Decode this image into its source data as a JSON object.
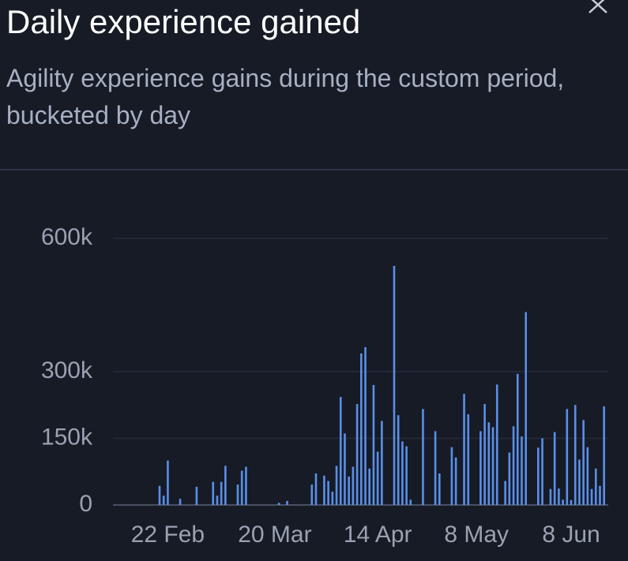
{
  "header": {
    "title": "Daily experience gained",
    "subtitle": "Agility experience gains during the custom period, bucketed by day"
  },
  "chart_data": {
    "type": "bar",
    "color": "#5b8fe8",
    "grid": true,
    "ylim": [
      0,
      600000
    ],
    "yticks": [
      0,
      {
        "value": 150000,
        "label": "150k"
      },
      {
        "value": 300000,
        "label": "300k"
      },
      {
        "value": 600000,
        "label": "600k"
      }
    ],
    "categories": [
      null,
      null,
      null,
      null,
      null,
      null,
      null,
      null,
      null,
      null,
      null,
      null,
      null,
      "22 Feb",
      null,
      null,
      null,
      null,
      null,
      null,
      null,
      null,
      null,
      null,
      null,
      null,
      null,
      null,
      null,
      null,
      null,
      null,
      null,
      null,
      null,
      null,
      null,
      null,
      null,
      "20 Mar",
      null,
      null,
      null,
      null,
      null,
      null,
      null,
      null,
      null,
      null,
      null,
      null,
      null,
      null,
      null,
      null,
      null,
      null,
      null,
      null,
      null,
      null,
      null,
      null,
      "14 Apr",
      null,
      null,
      null,
      null,
      null,
      null,
      null,
      null,
      null,
      null,
      null,
      null,
      null,
      null,
      null,
      null,
      null,
      null,
      null,
      null,
      null,
      null,
      null,
      "8 May",
      null,
      null,
      null,
      null,
      null,
      null,
      null,
      null,
      null,
      null,
      null,
      null,
      null,
      null,
      null,
      null,
      null,
      null,
      null,
      null,
      null,
      null,
      "8 Jun",
      null,
      null,
      null,
      null,
      null,
      null,
      null,
      null
    ],
    "values": [
      0,
      0,
      0,
      0,
      0,
      0,
      0,
      0,
      0,
      0,
      0,
      43000,
      21000,
      100000,
      0,
      0,
      14000,
      0,
      0,
      0,
      41000,
      0,
      0,
      0,
      52000,
      21000,
      52000,
      88000,
      0,
      0,
      46000,
      77000,
      86000,
      0,
      0,
      0,
      0,
      0,
      0,
      0,
      5000,
      0,
      9000,
      0,
      0,
      0,
      0,
      0,
      46000,
      71000,
      0,
      66000,
      54000,
      30000,
      88000,
      243000,
      161000,
      64000,
      86000,
      227000,
      341000,
      355000,
      82000,
      270000,
      120000,
      189000,
      0,
      0,
      538000,
      202000,
      143000,
      132000,
      12000,
      0,
      0,
      216000,
      0,
      0,
      166000,
      71000,
      0,
      0,
      130000,
      107000,
      0,
      250000,
      204000,
      0,
      0,
      166000,
      227000,
      186000,
      175000,
      271000,
      0,
      54000,
      118000,
      177000,
      295000,
      154000,
      434000,
      0,
      0,
      129000,
      150000,
      0,
      36000,
      164000,
      37000,
      12000,
      216000,
      11000,
      225000,
      102000,
      191000,
      130000,
      36000,
      82000,
      43000,
      222000
    ]
  }
}
